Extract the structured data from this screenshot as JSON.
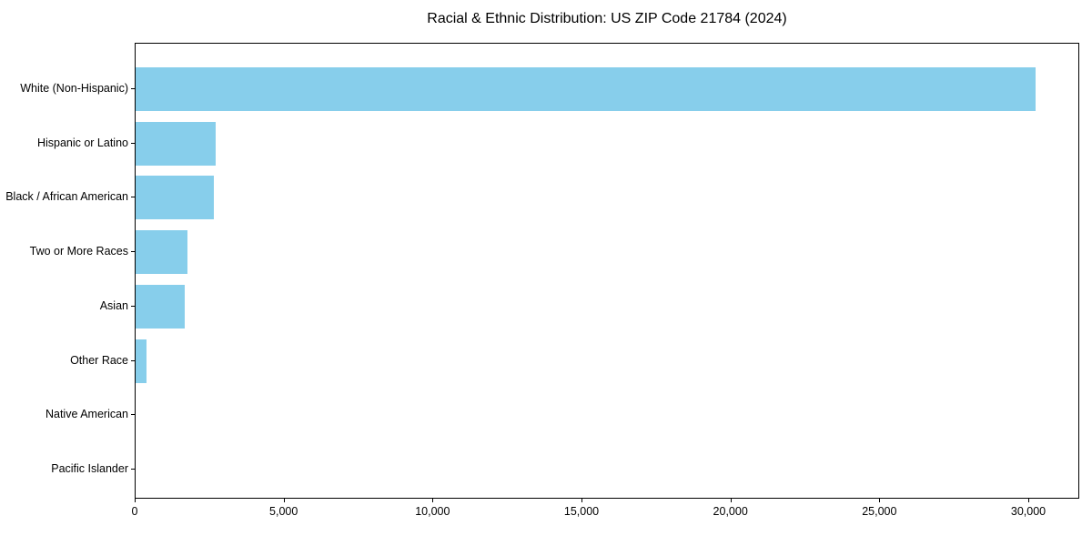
{
  "chart_data": {
    "type": "bar",
    "orientation": "horizontal",
    "title": "Racial & Ethnic Distribution: US ZIP Code 21784 (2024)",
    "categories": [
      "White (Non-Hispanic)",
      "Hispanic or Latino",
      "Black / African American",
      "Two or More Races",
      "Asian",
      "Other Race",
      "Native American",
      "Pacific Islander"
    ],
    "values": [
      30200,
      2680,
      2640,
      1740,
      1650,
      370,
      0,
      0
    ],
    "xlabel": "",
    "ylabel": "",
    "xlim": [
      0,
      31710
    ],
    "xticks": [
      0,
      5000,
      10000,
      15000,
      20000,
      25000,
      30000
    ],
    "xtick_labels": [
      "0",
      "5,000",
      "10,000",
      "15,000",
      "20,000",
      "25,000",
      "30,000"
    ],
    "bar_color": "#87CEEB",
    "axis_color": "#000000",
    "grid": "off",
    "legend": "none"
  }
}
